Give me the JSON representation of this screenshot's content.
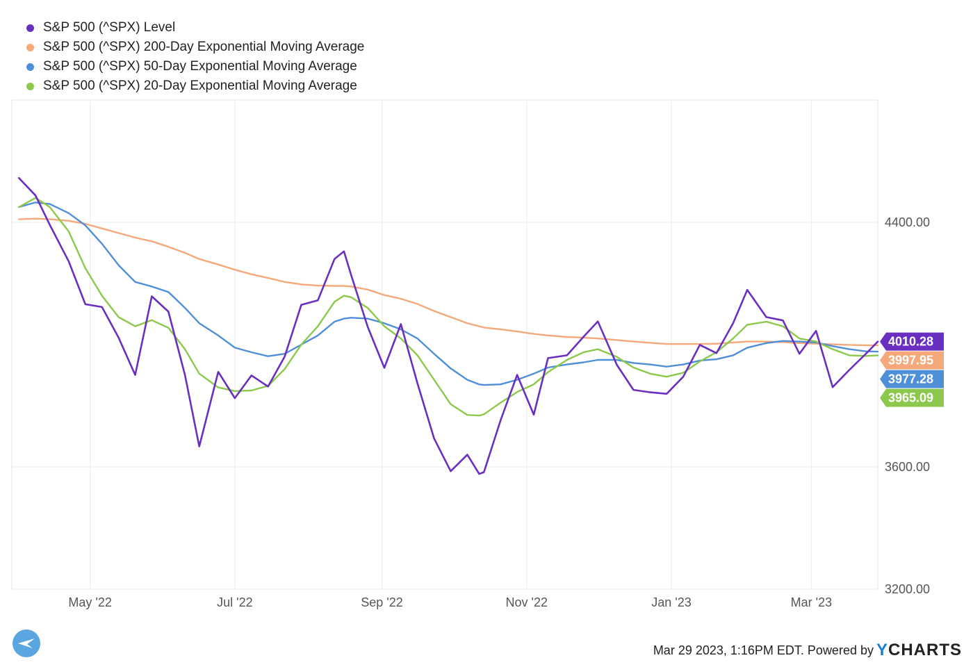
{
  "legend": [
    {
      "label": "S&P 500 (^SPX) Level",
      "color": "#6a2fc0"
    },
    {
      "label": "S&P 500 (^SPX) 200-Day Exponential Moving Average",
      "color": "#f5a97a"
    },
    {
      "label": "S&P 500 (^SPX) 50-Day Exponential Moving Average",
      "color": "#4f8fd8"
    },
    {
      "label": "S&P 500 (^SPX) 20-Day Exponential Moving Average",
      "color": "#8cc84b"
    }
  ],
  "footer": {
    "timestamp": "Mar 29 2023, 1:16PM EDT. Powered by",
    "brand_y": "Y",
    "brand_rest": "CHARTS"
  },
  "chart_data": {
    "type": "line",
    "x": [
      "2022-04-01",
      "2022-04-08",
      "2022-04-14",
      "2022-04-22",
      "2022-04-29",
      "2022-05-06",
      "2022-05-13",
      "2022-05-20",
      "2022-05-27",
      "2022-06-03",
      "2022-06-10",
      "2022-06-16",
      "2022-06-24",
      "2022-07-01",
      "2022-07-08",
      "2022-07-15",
      "2022-07-22",
      "2022-07-29",
      "2022-08-05",
      "2022-08-12",
      "2022-08-16",
      "2022-08-19",
      "2022-08-26",
      "2022-09-02",
      "2022-09-09",
      "2022-09-16",
      "2022-09-23",
      "2022-09-30",
      "2022-10-07",
      "2022-10-12",
      "2022-10-14",
      "2022-10-21",
      "2022-10-28",
      "2022-11-04",
      "2022-11-10",
      "2022-11-18",
      "2022-11-25",
      "2022-12-01",
      "2022-12-09",
      "2022-12-16",
      "2022-12-23",
      "2022-12-30",
      "2023-01-06",
      "2023-01-13",
      "2023-01-20",
      "2023-01-27",
      "2023-02-02",
      "2023-02-10",
      "2023-02-17",
      "2023-02-24",
      "2023-03-03",
      "2023-03-10",
      "2023-03-17",
      "2023-03-24",
      "2023-03-29"
    ],
    "series": [
      {
        "name": "S&P 500 (^SPX) Level",
        "color": "#6a2fc0",
        "values": [
          4545,
          4488,
          4392,
          4272,
          4132,
          4123,
          4023,
          3901,
          4158,
          4108,
          3900,
          3667,
          3911,
          3825,
          3899,
          3863,
          3961,
          4130,
          4145,
          4280,
          4305,
          4228,
          4058,
          3924,
          4067,
          3873,
          3693,
          3586,
          3640,
          3577,
          3583,
          3752,
          3901,
          3771,
          3956,
          3965,
          4026,
          4076,
          3934,
          3852,
          3844,
          3839,
          3895,
          3999,
          3972,
          4070,
          4179,
          4090,
          4079,
          3970,
          4045,
          3861,
          3917,
          3970,
          4010
        ]
      },
      {
        "name": "S&P 500 (^SPX) 200-Day Exponential Moving Average",
        "color": "#f5a97a",
        "values": [
          4410,
          4412,
          4410,
          4405,
          4395,
          4380,
          4365,
          4350,
          4338,
          4320,
          4300,
          4280,
          4262,
          4245,
          4230,
          4218,
          4205,
          4197,
          4193,
          4192,
          4192,
          4190,
          4180,
          4162,
          4150,
          4133,
          4110,
          4090,
          4070,
          4060,
          4056,
          4050,
          4043,
          4035,
          4030,
          4025,
          4023,
          4020,
          4015,
          4010,
          4006,
          4002,
          4002,
          4002,
          4003,
          4007,
          4010,
          4010,
          4008,
          4005,
          4003,
          4001,
          3999,
          3998,
          3998
        ]
      },
      {
        "name": "S&P 500 (^SPX) 50-Day Exponential Moving Average",
        "color": "#4f8fd8",
        "values": [
          4450,
          4465,
          4460,
          4430,
          4390,
          4330,
          4260,
          4205,
          4190,
          4172,
          4120,
          4070,
          4030,
          3990,
          3975,
          3962,
          3970,
          4000,
          4030,
          4075,
          4085,
          4088,
          4085,
          4070,
          4050,
          4020,
          3970,
          3922,
          3885,
          3870,
          3868,
          3870,
          3885,
          3905,
          3925,
          3935,
          3942,
          3950,
          3950,
          3940,
          3935,
          3928,
          3935,
          3948,
          3952,
          3965,
          3990,
          4005,
          4012,
          4010,
          4007,
          3995,
          3985,
          3978,
          3977
        ]
      },
      {
        "name": "S&P 500 (^SPX) 20-Day Exponential Moving Average",
        "color": "#8cc84b",
        "values": [
          4450,
          4480,
          4450,
          4370,
          4250,
          4160,
          4090,
          4060,
          4080,
          4055,
          3985,
          3905,
          3860,
          3848,
          3850,
          3865,
          3920,
          4000,
          4060,
          4140,
          4160,
          4155,
          4120,
          4060,
          4020,
          3965,
          3885,
          3805,
          3770,
          3768,
          3772,
          3810,
          3845,
          3870,
          3910,
          3950,
          3975,
          3985,
          3960,
          3925,
          3905,
          3895,
          3908,
          3945,
          3975,
          4020,
          4065,
          4075,
          4060,
          4020,
          4010,
          3985,
          3965,
          3963,
          3965
        ]
      }
    ],
    "y_axis": {
      "side": "right",
      "ticks": [
        3200,
        3600,
        4400
      ],
      "tick_labels": [
        "3200.00",
        "3600.00",
        "4400.00"
      ],
      "ylim": [
        3200,
        4800
      ]
    },
    "x_axis": {
      "tick_dates": [
        "2022-05-01",
        "2022-07-01",
        "2022-09-01",
        "2022-11-01",
        "2023-01-01",
        "2023-03-01"
      ],
      "tick_labels": [
        "May '22",
        "Jul '22",
        "Sep '22",
        "Nov '22",
        "Jan '23",
        "Mar '23"
      ],
      "xlim": [
        "2022-03-29",
        "2023-03-29"
      ]
    },
    "end_labels": [
      {
        "text": "4010.28",
        "color": "#6a2fc0"
      },
      {
        "text": "3997.95",
        "color": "#f5a97a"
      },
      {
        "text": "3977.28",
        "color": "#4f8fd8"
      },
      {
        "text": "3965.09",
        "color": "#8cc84b"
      }
    ],
    "grid": true,
    "legend_position": "top-left"
  }
}
